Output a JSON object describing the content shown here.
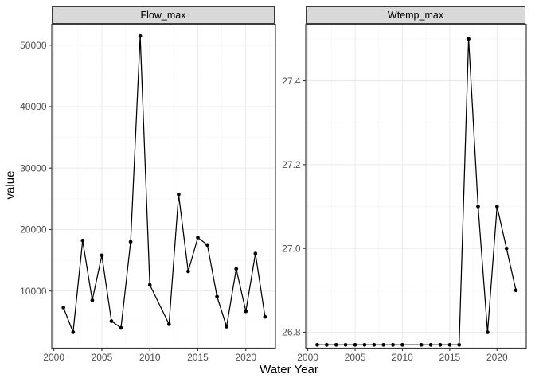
{
  "labels": {
    "ylabel": "value",
    "xlabel": "Water Year"
  },
  "chart_data": [
    {
      "type": "line",
      "panel_title": "Flow_max",
      "xlabel": "Water Year",
      "ylabel": "value",
      "x": [
        2001,
        2002,
        2003,
        2004,
        2005,
        2006,
        2007,
        2008,
        2009,
        2010,
        2012,
        2013,
        2014,
        2015,
        2016,
        2017,
        2018,
        2019,
        2020,
        2021,
        2022
      ],
      "y": [
        7300,
        3300,
        18200,
        8500,
        15800,
        5100,
        4000,
        18000,
        51500,
        11000,
        4600,
        25700,
        13200,
        18700,
        17500,
        9100,
        4200,
        13600,
        6700,
        16100,
        5800
      ],
      "xlim": [
        1999.78,
        2023.09
      ],
      "ylim": [
        700,
        53400
      ],
      "x_ticks": {
        "values": [
          2000,
          2005,
          2010,
          2015,
          2020
        ],
        "labels": [
          "2000",
          "2005",
          "2010",
          "2015",
          "2020"
        ]
      },
      "y_ticks": {
        "values": [
          10000,
          20000,
          30000,
          40000,
          50000
        ],
        "labels": [
          "10000",
          "20000",
          "30000",
          "40000",
          "50000"
        ]
      },
      "x_minor": [
        2002.5,
        2007.5,
        2012.5,
        2017.5,
        2022.5
      ],
      "y_minor": [
        5000,
        15000,
        25000,
        35000,
        45000
      ],
      "grid": true,
      "legend": false
    },
    {
      "type": "line",
      "panel_title": "Wtemp_max",
      "xlabel": "Water Year",
      "ylabel": "value",
      "x": [
        2001,
        2002,
        2003,
        2004,
        2005,
        2006,
        2007,
        2008,
        2009,
        2010,
        2012,
        2013,
        2014,
        2015,
        2016,
        2017,
        2018,
        2019,
        2020,
        2021,
        2022
      ],
      "y": [
        26.77,
        26.77,
        26.77,
        26.77,
        26.77,
        26.77,
        26.77,
        26.77,
        26.77,
        26.77,
        26.77,
        26.77,
        26.77,
        26.77,
        26.77,
        27.5,
        27.1,
        26.8,
        27.1,
        27.0,
        26.9
      ],
      "xlim": [
        1999.78,
        2023.09
      ],
      "ylim": [
        26.762,
        27.535
      ],
      "x_ticks": {
        "values": [
          2000,
          2005,
          2010,
          2015,
          2020
        ],
        "labels": [
          "2000",
          "2005",
          "2010",
          "2015",
          "2020"
        ]
      },
      "y_ticks": {
        "values": [
          26.8,
          27.0,
          27.2,
          27.4
        ],
        "labels": [
          "26.8",
          "27.0",
          "27.2",
          "27.4"
        ]
      },
      "x_minor": [
        2002.5,
        2007.5,
        2012.5,
        2017.5,
        2022.5
      ],
      "y_minor": [
        26.9,
        27.1,
        27.3,
        27.5
      ],
      "grid": true,
      "legend": false
    }
  ],
  "style": {
    "background": "#FFFFFF",
    "panel_background": "#FFFFFF",
    "strip_fill": "#D9D9D9",
    "panel_border": "#3B3B3B",
    "grid_major": "#EBEBEB",
    "grid_minor": "#F5F5F5",
    "axis_text": "#4D4D4D",
    "tick_mark": "#333333",
    "title_text": "#000000",
    "line_color": "#000000",
    "point_color": "#000000"
  }
}
